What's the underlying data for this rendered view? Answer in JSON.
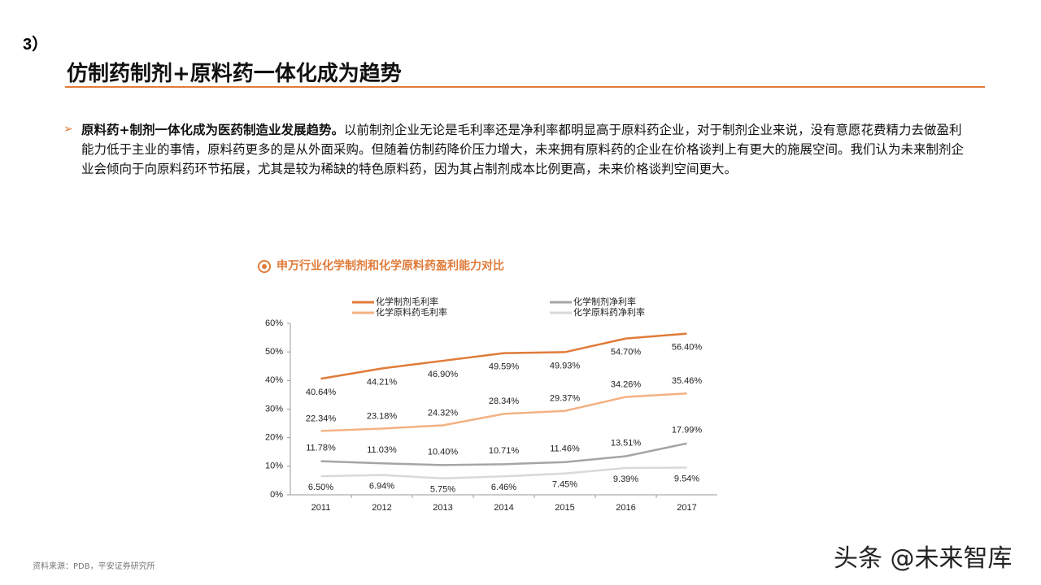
{
  "header": {
    "section": "3）",
    "title": "仿制药制剂+原料药一体化成为趋势"
  },
  "bullet": {
    "bold": "原料药+制剂一体化成为医药制造业发展趋势。",
    "text": "以前制剂企业无论是毛利率还是净利率都明显高于原料药企业，对于制剂企业来说，没有意愿花费精力去做盈利能力低于主业的事情，原料药更多的是从外面采购。但随着仿制药降价压力增大，未来拥有原料药的企业在价格谈判上有更大的施展空间。我们认为未来制剂企业会倾向于向原料药环节拓展，尤其是较为稀缺的特色原料药，因为其占制剂成本比例更高，未来价格谈判空间更大。"
  },
  "chart_data": {
    "type": "line",
    "title": "申万行业化学制剂和化学原料药盈利能力对比",
    "categories": [
      "2011",
      "2012",
      "2013",
      "2014",
      "2015",
      "2016",
      "2017"
    ],
    "series": [
      {
        "name": "化学制剂毛利率",
        "color": "#e07b39",
        "values": [
          40.64,
          44.21,
          46.9,
          49.59,
          49.93,
          54.7,
          56.4
        ],
        "value_labels": [
          "40.64%",
          "44.21%",
          "46.90%",
          "49.59%",
          "49.93%",
          "54.70%",
          "56.40%"
        ]
      },
      {
        "name": "化学原料药毛利率",
        "color": "#f4b183",
        "values": [
          22.34,
          23.18,
          24.32,
          28.34,
          29.37,
          34.26,
          35.46
        ],
        "value_labels": [
          "22.34%",
          "23.18%",
          "24.32%",
          "28.34%",
          "29.37%",
          "34.26%",
          "35.46%"
        ]
      },
      {
        "name": "化学制剂净利率",
        "color": "#a5a5a5",
        "values": [
          11.78,
          11.03,
          10.4,
          10.71,
          11.46,
          13.51,
          17.99
        ],
        "value_labels": [
          "11.78%",
          "11.03%",
          "10.40%",
          "10.71%",
          "11.46%",
          "13.51%",
          "17.99%"
        ]
      },
      {
        "name": "化学原料药净利率",
        "color": "#d9d9d9",
        "values": [
          6.5,
          6.94,
          5.75,
          6.46,
          7.45,
          9.39,
          9.54
        ],
        "value_labels": [
          "6.50%",
          "6.94%",
          "5.75%",
          "6.46%",
          "7.45%",
          "9.39%",
          "9.54%"
        ]
      }
    ],
    "ylim": [
      0,
      60
    ],
    "yticks": [
      {
        "value": 0,
        "label": "0%"
      },
      {
        "value": 10,
        "label": "10%"
      },
      {
        "value": 20,
        "label": "20%"
      },
      {
        "value": 30,
        "label": "30%"
      },
      {
        "value": 40,
        "label": "40%"
      },
      {
        "value": 50,
        "label": "50%"
      },
      {
        "value": 60,
        "label": "60%"
      }
    ],
    "grid": false
  },
  "source": "资料来源：PDB，平安证券研究所",
  "watermark": "头条 @未来智库"
}
